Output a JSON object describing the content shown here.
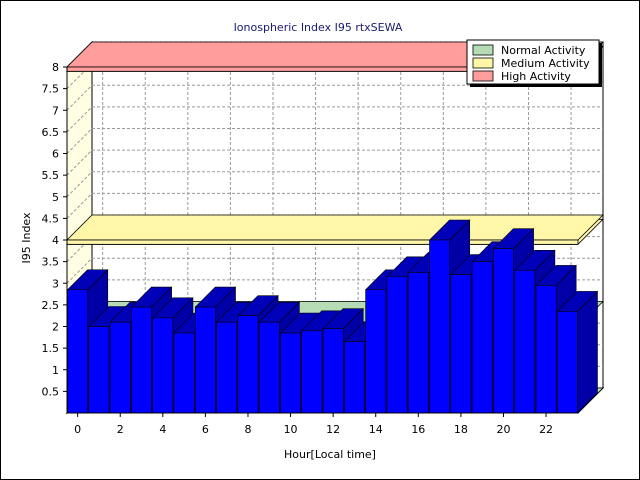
{
  "chart_data": {
    "type": "bar",
    "title": "Ionospheric Index I95 rtxSEWA",
    "xlabel": "Hour[Local time]",
    "ylabel": "I95 Index",
    "ylim": [
      0,
      8
    ],
    "yticks": [
      "0.5",
      "1",
      "1.5",
      "2",
      "2.5",
      "3",
      "3.5",
      "4",
      "4.5",
      "5",
      "5.5",
      "6",
      "6.5",
      "7",
      "7.5",
      "8"
    ],
    "xticks": [
      "0",
      "2",
      "4",
      "6",
      "8",
      "10",
      "12",
      "14",
      "16",
      "18",
      "20",
      "22"
    ],
    "x": [
      0,
      1,
      2,
      3,
      4,
      5,
      6,
      7,
      8,
      9,
      10,
      11,
      12,
      13,
      14,
      15,
      16,
      17,
      18,
      19,
      20,
      21,
      22,
      23
    ],
    "series": [
      {
        "values": [
          2.85,
          2.0,
          2.1,
          2.45,
          2.2,
          1.85,
          2.45,
          2.1,
          2.25,
          2.1,
          1.85,
          1.9,
          1.95,
          1.65,
          2.85,
          3.15,
          3.25,
          4.0,
          3.2,
          3.5,
          3.8,
          3.3,
          2.95,
          2.35
        ],
        "color": "#0000ff"
      }
    ],
    "legend": {
      "placement": "top-right",
      "entries": [
        {
          "label": "Normal Activity",
          "color": "#b6dcb6"
        },
        {
          "label": "Medium Activity",
          "color": "#fff6a8"
        },
        {
          "label": "High Activity",
          "color": "#ff9c9c"
        }
      ]
    },
    "bands": [
      {
        "label": "Normal Activity",
        "from": 0,
        "to": 2,
        "color": "#b6dcb6"
      },
      {
        "label": "Medium Activity",
        "from": 3.9,
        "to": 4,
        "color": "#fff6a8"
      },
      {
        "label": "High Activity",
        "from": 7.9,
        "to": 8,
        "color": "#ff9c9c"
      }
    ],
    "grid": true,
    "style": "3d"
  }
}
